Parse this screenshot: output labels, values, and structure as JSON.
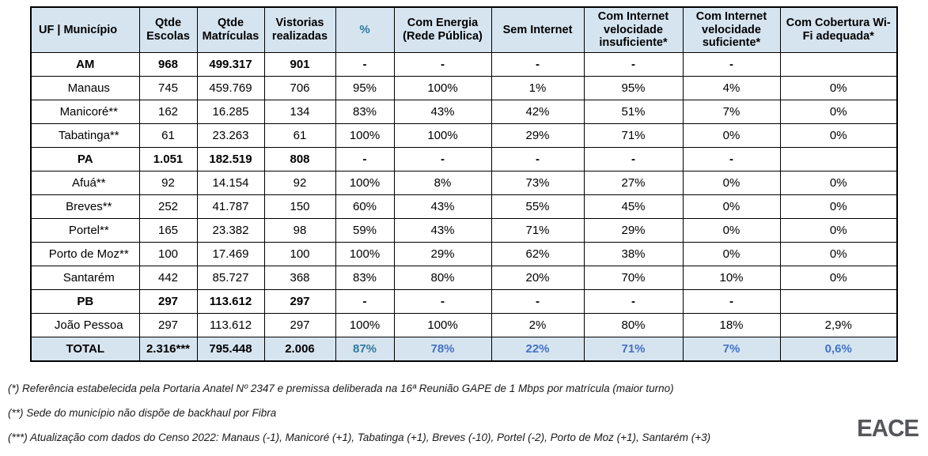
{
  "colors": {
    "header_bg": "#d6e4f0",
    "blue_cell_bg": "#dce7f3",
    "percent_text": "#2e7a9c",
    "blue_text": "#4472c4",
    "border": "#000000",
    "logo_text": "#55565a"
  },
  "table": {
    "headers": [
      "UF | Município",
      "Qtde Escolas",
      "Qtde Matrículas",
      "Vistorias realizadas",
      "%",
      "Com Energia (Rede Pública)",
      "Sem Internet",
      "Com Internet velocidade insuficiente*",
      "Com Internet velocidade suficiente*",
      "Com Cobertura Wi-Fi adequada*"
    ],
    "column_keys": [
      "uf-municipio",
      "qtde-escolas",
      "qtde-matriculas",
      "vistorias-realizadas",
      "percent",
      "com-energia",
      "sem-internet",
      "internet-insuficiente",
      "internet-suficiente",
      "wifi-adequada"
    ],
    "rows": [
      {
        "type": "state",
        "cells": [
          "AM",
          "968",
          "499.317",
          "901",
          "-",
          "-",
          "-",
          "-",
          "-",
          ""
        ]
      },
      {
        "type": "city",
        "cells": [
          "Manaus",
          "745",
          "459.769",
          "706",
          "95%",
          "100%",
          "1%",
          "95%",
          "4%",
          "0%"
        ]
      },
      {
        "type": "city",
        "cells": [
          "Manicoré**",
          "162",
          "16.285",
          "134",
          "83%",
          "43%",
          "42%",
          "51%",
          "7%",
          "0%"
        ]
      },
      {
        "type": "city",
        "cells": [
          "Tabatinga**",
          "61",
          "23.263",
          "61",
          "100%",
          "100%",
          "29%",
          "71%",
          "0%",
          "0%"
        ]
      },
      {
        "type": "state",
        "cells": [
          "PA",
          "1.051",
          "182.519",
          "808",
          "-",
          "-",
          "-",
          "-",
          "-",
          ""
        ]
      },
      {
        "type": "city",
        "cells": [
          "Afuá**",
          "92",
          "14.154",
          "92",
          "100%",
          "8%",
          "73%",
          "27%",
          "0%",
          "0%"
        ]
      },
      {
        "type": "city",
        "cells": [
          "Breves**",
          "252",
          "41.787",
          "150",
          "60%",
          "43%",
          "55%",
          "45%",
          "0%",
          "0%"
        ]
      },
      {
        "type": "city",
        "cells": [
          "Portel**",
          "165",
          "23.382",
          "98",
          "59%",
          "43%",
          "71%",
          "29%",
          "0%",
          "0%"
        ]
      },
      {
        "type": "city",
        "cells": [
          "Porto de Moz**",
          "100",
          "17.469",
          "100",
          "100%",
          "29%",
          "62%",
          "38%",
          "0%",
          "0%"
        ]
      },
      {
        "type": "city",
        "cells": [
          "Santarém",
          "442",
          "85.727",
          "368",
          "83%",
          "80%",
          "20%",
          "70%",
          "10%",
          "0%"
        ]
      },
      {
        "type": "state",
        "cells": [
          "PB",
          "297",
          "113.612",
          "297",
          "-",
          "-",
          "-",
          "-",
          "-",
          ""
        ]
      },
      {
        "type": "city",
        "cells": [
          "João Pessoa",
          "297",
          "113.612",
          "297",
          "100%",
          "100%",
          "2%",
          "80%",
          "18%",
          "2,9%"
        ]
      },
      {
        "type": "total",
        "cells": [
          "TOTAL",
          "2.316***",
          "795.448",
          "2.006",
          "87%",
          "78%",
          "22%",
          "71%",
          "7%",
          "0,6%"
        ]
      }
    ]
  },
  "footnotes": [
    "(*) Referência estabelecida pela Portaria Anatel Nº 2347 e premissa deliberada na 16ª Reunião GAPE de 1 Mbps por matrícula (maior turno)",
    "(**) Sede do município não dispõe de backhaul por Fibra",
    "(***) Atualização com dados do Censo 2022: Manaus (-1), Manicoré (+1), Tabatinga (+1), Breves (-10), Portel (-2), Porto de Moz (+1), Santarém (+3)"
  ],
  "logo": "EACE"
}
